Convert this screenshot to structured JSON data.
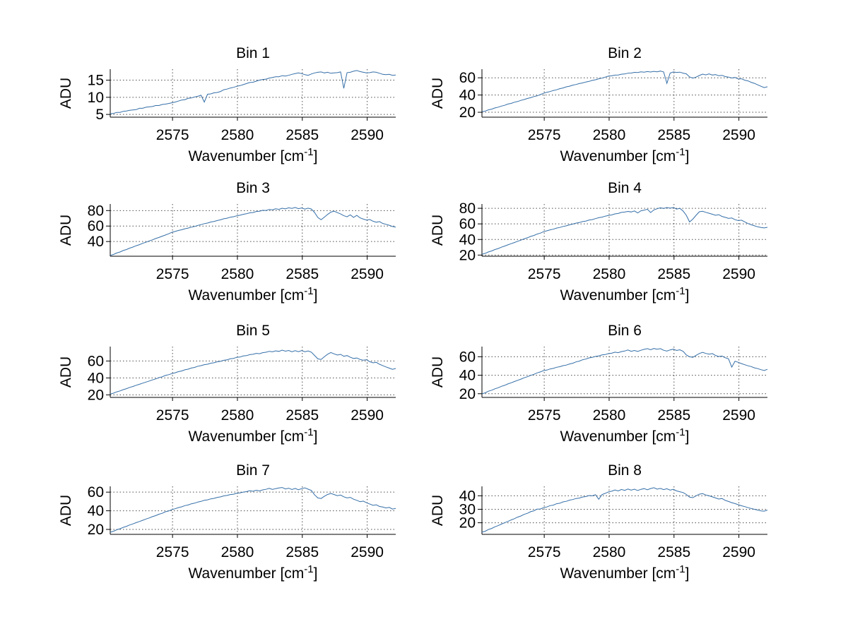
{
  "figure": {
    "background": "#ffffff",
    "line_color": "#356fa8",
    "axis_color": "#000000",
    "grid_color": "#4d4d4d",
    "text_color": "#000000"
  },
  "labels": {
    "ylabel": "ADU",
    "xlabel_base": "Wavenumber [cm",
    "xlabel_sup": "-1",
    "xlabel_close": "]"
  },
  "chart_data": [
    {
      "type": "line",
      "title": "Bin 1",
      "xlabel": "Wavenumber [cm^-1]",
      "ylabel": "ADU",
      "grid": true,
      "xlim": [
        2570.2,
        2592.2
      ],
      "ylim": [
        4.2,
        18.2
      ],
      "xticks": [
        2575,
        2580,
        2585,
        2590
      ],
      "yticks": [
        5,
        10,
        15
      ],
      "x_start": 2570.2,
      "x_step": 0.25,
      "y": [
        5.2,
        5.3,
        5.6,
        5.6,
        5.9,
        6.0,
        6.2,
        6.3,
        6.4,
        6.8,
        6.8,
        7.1,
        7.2,
        7.3,
        7.6,
        7.6,
        7.9,
        8.0,
        8.2,
        8.4,
        8.6,
        8.9,
        9.2,
        9.3,
        9.7,
        9.8,
        10.1,
        10.3,
        10.6,
        8.6,
        10.9,
        11.0,
        11.3,
        11.4,
        11.7,
        12.2,
        12.4,
        12.7,
        12.9,
        13.2,
        13.4,
        13.7,
        14.0,
        14.3,
        14.4,
        14.7,
        15.0,
        15.2,
        15.3,
        15.6,
        15.8,
        16.0,
        16.0,
        16.3,
        16.2,
        16.4,
        16.7,
        16.9,
        17.1,
        16.9,
        16.6,
        16.4,
        16.8,
        17.1,
        17.3,
        17.4,
        17.1,
        17.3,
        17.0,
        17.1,
        17.2,
        17.4,
        12.6,
        17.2,
        17.3,
        17.6,
        17.8,
        17.5,
        17.3,
        17.1,
        17.2,
        17.4,
        17.3,
        17.0,
        16.7,
        16.6,
        16.7,
        16.4,
        16.5
      ]
    },
    {
      "type": "line",
      "title": "Bin 2",
      "xlabel": "Wavenumber [cm^-1]",
      "ylabel": "ADU",
      "grid": true,
      "xlim": [
        2570.2,
        2592.2
      ],
      "ylim": [
        14.3,
        70
      ],
      "xticks": [
        2575,
        2580,
        2585,
        2590
      ],
      "yticks": [
        20,
        40,
        60
      ],
      "x_start": 2570.2,
      "x_step": 0.25,
      "y": [
        20.5,
        21.4,
        22.8,
        23.6,
        25.0,
        25.9,
        27.2,
        28.1,
        29.5,
        30.3,
        31.7,
        32.5,
        33.8,
        34.8,
        36.0,
        36.9,
        38.2,
        39.0,
        40.5,
        42.0,
        43.2,
        44.0,
        45.3,
        46.1,
        47.4,
        48.2,
        49.5,
        50.3,
        51.5,
        52.2,
        53.3,
        54.0,
        55.1,
        55.8,
        57.0,
        57.7,
        58.9,
        59.6,
        60.8,
        61.9,
        62.3,
        63.1,
        63.3,
        64.2,
        64.4,
        65.3,
        65.5,
        66.3,
        66.1,
        66.9,
        66.5,
        67.2,
        66.7,
        67.5,
        67.0,
        67.8,
        66.8,
        53.5,
        65.5,
        66.8,
        66.2,
        66.6,
        65.4,
        64.6,
        61.0,
        59.6,
        60.8,
        62.6,
        64.3,
        63.4,
        64.6,
        63.2,
        63.8,
        62.4,
        62.9,
        61.4,
        60.8,
        59.8,
        60.4,
        58.6,
        58.9,
        57.2,
        56.4,
        54.8,
        53.5,
        51.8,
        50.2,
        48.6,
        49.6
      ]
    },
    {
      "type": "line",
      "title": "Bin 3",
      "xlabel": "Wavenumber [cm^-1]",
      "ylabel": "ADU",
      "grid": true,
      "xlim": [
        2570.2,
        2592.2
      ],
      "ylim": [
        21,
        88.5
      ],
      "xticks": [
        2575,
        2580,
        2585,
        2590
      ],
      "yticks": [
        40,
        60,
        80
      ],
      "x_start": 2570.2,
      "x_step": 0.25,
      "y": [
        22.0,
        23.3,
        25.2,
        26.5,
        28.4,
        29.7,
        31.5,
        32.9,
        34.6,
        36.0,
        37.7,
        39.1,
        40.8,
        42.2,
        43.9,
        45.3,
        46.9,
        48.4,
        50.0,
        51.9,
        53.0,
        54.3,
        55.2,
        56.5,
        57.4,
        58.6,
        59.5,
        60.9,
        61.8,
        63.1,
        63.9,
        65.2,
        66.0,
        67.2,
        68.1,
        69.4,
        70.2,
        71.4,
        72.1,
        73.3,
        74.0,
        75.2,
        75.9,
        77.1,
        77.5,
        78.8,
        79.2,
        80.4,
        80.1,
        81.5,
        81.0,
        82.3,
        81.6,
        83.0,
        82.2,
        83.6,
        82.8,
        84.0,
        82.5,
        83.4,
        81.9,
        83.1,
        82.0,
        77.5,
        71.0,
        68.2,
        71.5,
        75.0,
        78.0,
        79.2,
        77.4,
        75.6,
        73.4,
        72.0,
        74.5,
        71.2,
        73.8,
        70.6,
        69.0,
        67.8,
        68.4,
        66.2,
        65.0,
        65.8,
        63.4,
        62.2,
        61.0,
        59.4,
        58.6
      ]
    },
    {
      "type": "line",
      "title": "Bin 4",
      "xlabel": "Wavenumber [cm^-1]",
      "ylabel": "ADU",
      "grid": true,
      "xlim": [
        2570.2,
        2592.2
      ],
      "ylim": [
        18.5,
        85.5
      ],
      "xticks": [
        2575,
        2580,
        2585,
        2590
      ],
      "yticks": [
        20,
        40,
        60,
        80
      ],
      "x_start": 2570.2,
      "x_step": 0.25,
      "y": [
        21.0,
        22.2,
        24.0,
        25.3,
        27.1,
        28.4,
        30.1,
        31.5,
        33.1,
        34.6,
        36.1,
        37.7,
        39.1,
        40.8,
        42.1,
        43.9,
        45.1,
        46.9,
        48.1,
        50.0,
        51.1,
        52.4,
        53.2,
        54.6,
        55.4,
        56.7,
        57.5,
        58.8,
        59.8,
        61.0,
        61.7,
        63.0,
        63.6,
        64.9,
        65.5,
        66.8,
        67.9,
        68.7,
        69.9,
        70.7,
        71.5,
        72.8,
        73.4,
        74.7,
        75.2,
        76.0,
        75.3,
        76.6,
        74.0,
        76.8,
        77.5,
        78.8,
        74.5,
        77.9,
        79.4,
        80.6,
        79.8,
        81.0,
        80.2,
        81.0,
        79.0,
        80.0,
        76.5,
        71.0,
        62.5,
        66.0,
        71.0,
        75.5,
        76.2,
        74.8,
        73.6,
        72.4,
        71.0,
        71.8,
        69.6,
        68.4,
        67.0,
        67.6,
        65.4,
        64.2,
        64.8,
        62.6,
        60.4,
        58.9,
        57.5,
        56.3,
        55.4,
        54.8,
        55.6
      ]
    },
    {
      "type": "line",
      "title": "Bin 5",
      "xlabel": "Wavenumber [cm^-1]",
      "ylabel": "ADU",
      "grid": true,
      "xlim": [
        2570.2,
        2592.2
      ],
      "ylim": [
        17,
        77
      ],
      "xticks": [
        2575,
        2580,
        2585,
        2590
      ],
      "yticks": [
        20,
        40,
        60
      ],
      "x_start": 2570.2,
      "x_step": 0.25,
      "y": [
        21.0,
        22.0,
        23.6,
        24.7,
        26.2,
        27.3,
        28.8,
        29.9,
        31.3,
        32.5,
        33.8,
        35.1,
        36.3,
        37.7,
        38.8,
        40.3,
        41.3,
        42.9,
        43.8,
        45.1,
        46.1,
        47.4,
        48.2,
        49.6,
        50.3,
        51.7,
        52.4,
        53.8,
        54.5,
        55.7,
        56.2,
        57.4,
        57.9,
        59.1,
        59.6,
        60.8,
        61.4,
        62.6,
        63.1,
        64.3,
        64.7,
        65.9,
        66.3,
        67.5,
        67.9,
        69.0,
        68.6,
        69.8,
        70.3,
        71.4,
        70.8,
        72.0,
        71.3,
        72.8,
        71.6,
        72.4,
        70.9,
        72.2,
        71.0,
        72.3,
        70.8,
        71.8,
        70.4,
        66.5,
        62.5,
        61.8,
        65.0,
        68.0,
        70.0,
        68.4,
        67.0,
        67.8,
        65.6,
        66.4,
        64.4,
        63.0,
        63.6,
        61.8,
        60.9,
        61.5,
        59.2,
        57.8,
        58.4,
        56.2,
        54.6,
        53.0,
        51.6,
        50.2,
        51.2
      ]
    },
    {
      "type": "line",
      "title": "Bin 6",
      "xlabel": "Wavenumber [cm^-1]",
      "ylabel": "ADU",
      "grid": true,
      "xlim": [
        2570.2,
        2592.2
      ],
      "ylim": [
        16,
        71
      ],
      "xticks": [
        2575,
        2580,
        2585,
        2590
      ],
      "yticks": [
        20,
        40,
        60
      ],
      "x_start": 2570.2,
      "x_step": 0.25,
      "y": [
        20.0,
        21.0,
        22.7,
        23.8,
        25.3,
        26.5,
        28.0,
        29.1,
        30.6,
        31.8,
        33.2,
        34.5,
        35.8,
        37.2,
        38.4,
        39.8,
        41.0,
        42.5,
        43.6,
        45.0,
        45.6,
        46.8,
        47.4,
        48.6,
        49.2,
        50.4,
        51.0,
        52.2,
        53.0,
        54.4,
        55.3,
        56.7,
        57.5,
        58.8,
        59.3,
        60.4,
        60.9,
        62.0,
        62.4,
        63.4,
        63.8,
        65.0,
        64.4,
        65.6,
        66.2,
        67.3,
        65.9,
        66.8,
        65.7,
        67.0,
        68.0,
        68.8,
        67.6,
        68.9,
        68.2,
        68.8,
        67.0,
        66.2,
        67.4,
        68.2,
        66.8,
        67.6,
        65.9,
        62.0,
        60.0,
        59.4,
        61.5,
        63.5,
        64.8,
        63.6,
        62.8,
        63.4,
        61.4,
        60.2,
        60.8,
        58.9,
        57.8,
        48.8,
        55.2,
        54.0,
        52.6,
        51.4,
        50.2,
        49.4,
        48.0,
        47.2,
        46.0,
        45.2,
        46.4
      ]
    },
    {
      "type": "line",
      "title": "Bin 7",
      "xlabel": "Wavenumber [cm^-1]",
      "ylabel": "ADU",
      "grid": true,
      "xlim": [
        2570.2,
        2592.2
      ],
      "ylim": [
        14.7,
        66.2
      ],
      "xticks": [
        2575,
        2580,
        2585,
        2590
      ],
      "yticks": [
        20,
        40,
        60
      ],
      "x_start": 2570.2,
      "x_step": 0.25,
      "y": [
        17.0,
        18.0,
        19.6,
        20.7,
        22.2,
        23.3,
        24.8,
        25.9,
        27.3,
        28.5,
        29.8,
        31.1,
        32.3,
        33.7,
        34.8,
        36.3,
        37.3,
        38.9,
        39.8,
        41.2,
        42.2,
        43.4,
        44.2,
        45.5,
        46.2,
        47.5,
        48.2,
        49.4,
        50.1,
        51.2,
        51.7,
        52.8,
        53.3,
        54.4,
        54.9,
        56.0,
        56.4,
        57.4,
        57.8,
        58.8,
        59.2,
        60.1,
        60.5,
        61.6,
        60.9,
        62.0,
        61.3,
        62.4,
        63.0,
        64.1,
        62.9,
        63.8,
        64.5,
        65.0,
        63.4,
        64.2,
        62.8,
        64.0,
        62.6,
        63.8,
        64.6,
        63.2,
        61.8,
        57.0,
        53.8,
        53.2,
        55.5,
        57.5,
        58.6,
        57.4,
        56.2,
        56.9,
        55.0,
        53.8,
        54.4,
        52.4,
        51.2,
        49.8,
        50.4,
        48.6,
        47.2,
        45.8,
        46.4,
        44.6,
        44.0,
        43.0,
        43.6,
        41.8,
        42.6
      ]
    },
    {
      "type": "line",
      "title": "Bin 8",
      "xlabel": "Wavenumber [cm^-1]",
      "ylabel": "ADU",
      "grid": true,
      "xlim": [
        2570.2,
        2592.2
      ],
      "ylim": [
        11.4,
        47
      ],
      "xticks": [
        2575,
        2580,
        2585,
        2590
      ],
      "yticks": [
        20,
        30,
        40
      ],
      "x_start": 2570.2,
      "x_step": 0.25,
      "y": [
        13.0,
        13.7,
        15.0,
        15.8,
        17.0,
        17.9,
        19.0,
        20.0,
        21.0,
        22.1,
        23.0,
        24.2,
        25.0,
        26.2,
        27.0,
        28.2,
        28.9,
        30.1,
        30.2,
        31.2,
        31.7,
        32.7,
        33.1,
        34.1,
        34.5,
        35.5,
        35.9,
        36.8,
        37.2,
        38.0,
        38.3,
        39.1,
        39.4,
        40.2,
        40.0,
        40.8,
        37.4,
        40.9,
        41.8,
        42.9,
        43.4,
        44.3,
        43.6,
        44.7,
        44.0,
        45.0,
        44.2,
        44.9,
        43.9,
        44.8,
        45.3,
        44.5,
        45.4,
        46.0,
        44.9,
        45.5,
        44.6,
        45.2,
        44.2,
        44.8,
        43.6,
        43.0,
        42.4,
        41.0,
        39.0,
        38.6,
        40.0,
        41.2,
        41.6,
        40.6,
        40.0,
        39.2,
        38.4,
        37.6,
        38.0,
        36.6,
        35.8,
        34.9,
        34.2,
        33.4,
        32.6,
        32.0,
        31.2,
        30.6,
        30.0,
        29.4,
        28.8,
        28.6,
        29.4
      ]
    }
  ]
}
